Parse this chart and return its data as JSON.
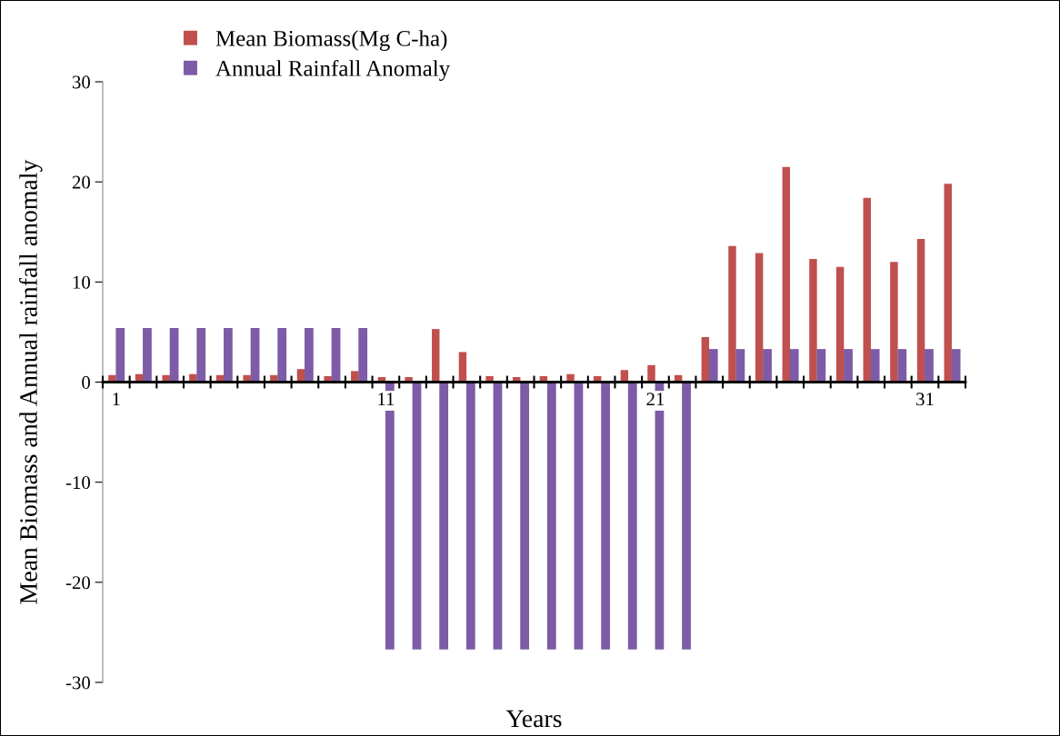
{
  "chart_data": {
    "type": "bar",
    "xlabel": "Years",
    "ylabel": "Mean Biomass and Annual rainfall anomaly",
    "categories": [
      "1",
      null,
      null,
      null,
      null,
      null,
      null,
      null,
      null,
      null,
      "11",
      null,
      null,
      null,
      null,
      null,
      null,
      null,
      null,
      null,
      "21",
      null,
      null,
      null,
      null,
      null,
      null,
      null,
      null,
      null,
      "31",
      null
    ],
    "series": [
      {
        "name": "Mean Biomass(Mg C-ha)",
        "color": "#c0504d",
        "values": [
          0.7,
          0.8,
          0.7,
          0.8,
          0.7,
          0.7,
          0.7,
          1.3,
          0.6,
          1.1,
          0.5,
          0.5,
          5.3,
          3.0,
          0.6,
          0.5,
          0.6,
          0.8,
          0.6,
          1.2,
          1.7,
          0.7,
          4.5,
          13.6,
          12.9,
          21.5,
          12.3,
          11.5,
          18.4,
          12.0,
          14.3,
          19.8
        ]
      },
      {
        "name": "Annual Rainfall Anomaly",
        "color": "#7d5ba6",
        "values": [
          5.4,
          5.4,
          5.4,
          5.4,
          5.4,
          5.4,
          5.4,
          5.4,
          5.4,
          5.4,
          -26.7,
          -26.7,
          -26.7,
          -26.7,
          -26.7,
          -26.7,
          -26.7,
          -26.7,
          -26.7,
          -26.7,
          -26.7,
          -26.7,
          3.3,
          3.3,
          3.3,
          3.3,
          3.3,
          3.3,
          3.3,
          3.3,
          3.3,
          3.3
        ]
      }
    ],
    "ylim": [
      -30,
      30
    ],
    "yticks": [
      -30,
      -20,
      -10,
      0,
      10,
      20,
      30
    ],
    "grid": false,
    "legend": "top left"
  }
}
